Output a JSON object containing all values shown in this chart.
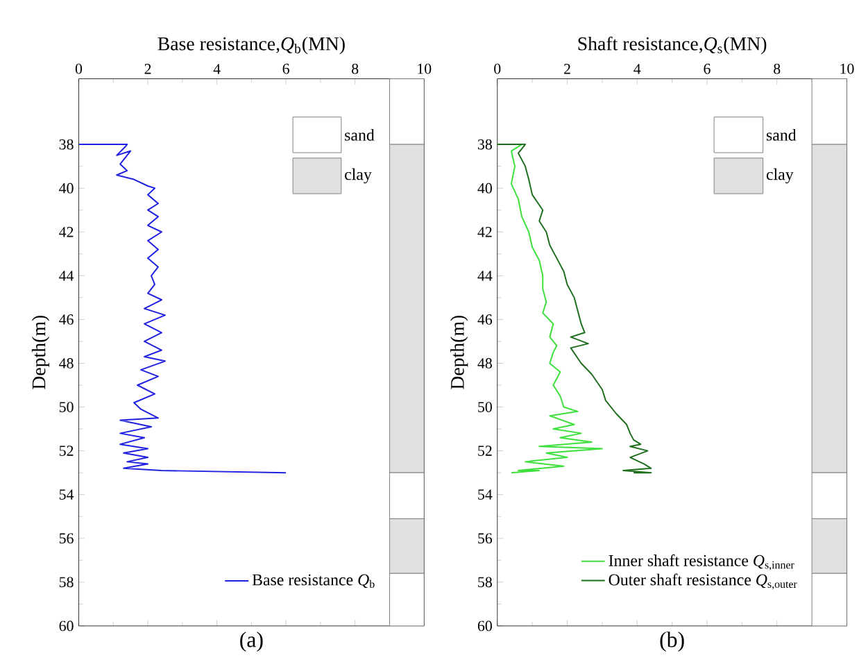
{
  "chart_data": [
    {
      "type": "line",
      "xlabel": "Base resistance,*Q*$_{b}$(MN)",
      "ylabel": "Depth(m)",
      "annotations": [
        "(a)"
      ],
      "xlim": [
        0,
        10
      ],
      "xticks": [
        0,
        2,
        4,
        6,
        8,
        10
      ],
      "ylim": [
        60,
        35
      ],
      "yticks": [
        38,
        40,
        42,
        44,
        46,
        48,
        50,
        52,
        54,
        56,
        58,
        60
      ],
      "legend": "bottom right",
      "bands": [
        {
          "axis": "y",
          "from": 35,
          "to": 38,
          "label": "sand",
          "color": "#ffffff"
        },
        {
          "axis": "y",
          "from": 38,
          "to": 53,
          "label": "clay",
          "color": "#e0e0e0"
        },
        {
          "axis": "y",
          "from": 53,
          "to": 55.1,
          "color": "#ffffff"
        },
        {
          "axis": "y",
          "from": 55.1,
          "to": 57.6,
          "color": "#e0e0e0"
        },
        {
          "axis": "y",
          "from": 57.6,
          "to": 60,
          "color": "#ffffff"
        }
      ],
      "series": [
        {
          "name": "Base resistance *Q*$_{b}$",
          "color": "#2020e0",
          "x": [
            0,
            1.4,
            1.35,
            1.1,
            1.5,
            1.2,
            1.4,
            1.1,
            1.6,
            2.0,
            2.2,
            2.0,
            2.3,
            2.0,
            2.3,
            2.0,
            2.4,
            2.0,
            2.3,
            2.0,
            2.3,
            2.1,
            2.2,
            2.0,
            2.4,
            1.9,
            2.5,
            1.9,
            2.4,
            1.9,
            2.4,
            1.9,
            2.5,
            1.8,
            2.3,
            1.7,
            2.2,
            1.6,
            1.8,
            2.3,
            1.2,
            2.1,
            1.2,
            1.9,
            1.2,
            2.0,
            1.3,
            2.0,
            1.4,
            2.0,
            1.3,
            2.4,
            6.0
          ],
          "values": [
            38,
            38,
            38.1,
            38.5,
            38.3,
            38.9,
            39.2,
            39.4,
            39.6,
            39.9,
            40.0,
            40.3,
            40.7,
            41.0,
            41.3,
            41.7,
            42.0,
            42.4,
            42.8,
            43.2,
            43.6,
            44.0,
            44.4,
            44.8,
            45.1,
            45.5,
            45.8,
            46.2,
            46.6,
            47.0,
            47.4,
            47.7,
            47.9,
            48.3,
            48.6,
            49.0,
            49.4,
            49.8,
            50.1,
            50.5,
            50.6,
            50.9,
            51.2,
            51.4,
            51.7,
            51.9,
            52.1,
            52.3,
            52.5,
            52.6,
            52.8,
            52.9,
            53.0
          ]
        }
      ]
    },
    {
      "type": "line",
      "xlabel": "Shaft resistance,*Q*$_{s}$(MN)",
      "ylabel": "Depth(m)",
      "annotations": [
        "(b)"
      ],
      "xlim": [
        0,
        10
      ],
      "xticks": [
        0,
        2,
        4,
        6,
        8,
        10
      ],
      "ylim": [
        60,
        35
      ],
      "yticks": [
        38,
        40,
        42,
        44,
        46,
        48,
        50,
        52,
        54,
        56,
        58,
        60
      ],
      "legend": "bottom right",
      "bands": [
        {
          "axis": "y",
          "from": 35,
          "to": 38,
          "label": "sand",
          "color": "#ffffff"
        },
        {
          "axis": "y",
          "from": 38,
          "to": 53,
          "label": "clay",
          "color": "#e0e0e0"
        },
        {
          "axis": "y",
          "from": 53,
          "to": 55.1,
          "color": "#ffffff"
        },
        {
          "axis": "y",
          "from": 55.1,
          "to": 57.6,
          "color": "#e0e0e0"
        },
        {
          "axis": "y",
          "from": 57.6,
          "to": 60,
          "color": "#ffffff"
        }
      ],
      "series": [
        {
          "name": "Inner shaft resistance *Q*$_{s,inner}$",
          "color": "#3ce03c",
          "x": [
            0,
            0.7,
            0.4,
            0.5,
            0.4,
            0.6,
            0.7,
            0.9,
            1.0,
            1.2,
            1.3,
            1.3,
            1.4,
            1.3,
            1.6,
            1.5,
            1.7,
            1.6,
            1.5,
            1.8,
            1.6,
            1.8,
            1.9,
            2.3,
            1.5,
            2.2,
            1.6,
            2.4,
            1.8,
            2.7,
            1.2,
            3.0,
            1.4,
            2.0,
            0.8,
            1.9,
            0.6,
            1.2,
            0.4
          ],
          "values": [
            38,
            38,
            38.3,
            39.0,
            39.8,
            40.5,
            41.3,
            42.0,
            42.7,
            43.3,
            44.0,
            44.6,
            45.2,
            45.7,
            46.2,
            46.8,
            47.2,
            47.5,
            48.0,
            48.4,
            49.0,
            49.5,
            50.0,
            50.2,
            50.4,
            50.8,
            51.0,
            51.2,
            51.4,
            51.6,
            51.8,
            51.9,
            52.1,
            52.3,
            52.5,
            52.7,
            52.9,
            52.9,
            53.0
          ]
        },
        {
          "name": "Outer shaft resistance *Q*$_{s,outer}$",
          "color": "#1e6e1e",
          "x": [
            0,
            0.8,
            0.6,
            0.8,
            0.9,
            1.0,
            1.3,
            1.2,
            1.4,
            1.5,
            1.7,
            1.9,
            2.0,
            2.2,
            2.3,
            2.4,
            2.5,
            2.1,
            2.6,
            2.1,
            2.4,
            2.7,
            3.0,
            3.1,
            3.4,
            3.7,
            3.8,
            3.9,
            4.1,
            3.8,
            4.3,
            3.8,
            4.2,
            4.4,
            3.6,
            4.4,
            3.9
          ],
          "values": [
            38,
            38,
            38.4,
            39.0,
            39.6,
            40.3,
            41.0,
            41.5,
            42.0,
            42.6,
            43.2,
            43.8,
            44.4,
            45.0,
            45.6,
            46.2,
            46.6,
            46.8,
            47.1,
            47.3,
            48.0,
            48.5,
            49.2,
            49.7,
            50.3,
            50.8,
            51.2,
            51.5,
            51.7,
            51.8,
            52.0,
            52.3,
            52.6,
            52.8,
            52.9,
            53.0,
            53.0
          ]
        }
      ]
    }
  ]
}
